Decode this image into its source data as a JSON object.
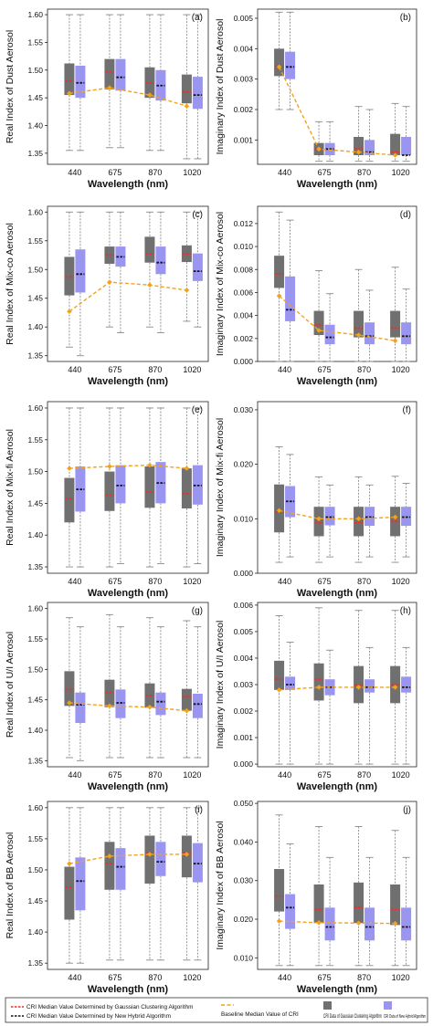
{
  "colors": {
    "gaussian_box": "#707070",
    "hybrid_box": "#9b95f2",
    "gaussian_median": "#e8312a",
    "hybrid_median": "#111111",
    "baseline": "#f2a21b",
    "whisker": "#8a8a8a"
  },
  "legend": {
    "gaussian_median": "CRI Median Value Determined by Gaussian  Clustering Algorithm",
    "hybrid_median": "CRI Median Value Determined by New Hybrid Algorithm",
    "baseline": "Baseline Median Value of CRI",
    "gaussian_box": "CRI Data of Gaussian Clustering Algorithm",
    "hybrid_box": "CRI Data of New Hybrid Algorithm"
  },
  "chart_data": [
    {
      "type": "box",
      "panel": "(a)",
      "ylabel": "Real Index of Dust Aerosol",
      "xlabel": "Wavelength (nm)",
      "categories": [
        "440",
        "675",
        "870",
        "1020"
      ],
      "ylim": [
        1.33,
        1.61
      ],
      "yticks": [
        1.35,
        1.4,
        1.45,
        1.5,
        1.55,
        1.6
      ],
      "ytick_labels": [
        "1.35",
        "1.40",
        "1.45",
        "1.50",
        "1.55",
        "1.60"
      ],
      "gaussian": [
        [
          1.355,
          1.455,
          1.48,
          1.512,
          1.6
        ],
        [
          1.36,
          1.465,
          1.497,
          1.52,
          1.6
        ],
        [
          1.355,
          1.45,
          1.477,
          1.505,
          1.6
        ],
        [
          1.34,
          1.44,
          1.46,
          1.492,
          1.6
        ]
      ],
      "hybrid": [
        [
          1.355,
          1.45,
          1.477,
          1.508,
          1.6
        ],
        [
          1.36,
          1.463,
          1.487,
          1.52,
          1.6
        ],
        [
          1.355,
          1.445,
          1.472,
          1.5,
          1.6
        ],
        [
          1.34,
          1.43,
          1.455,
          1.488,
          1.6
        ]
      ],
      "baseline": [
        1.458,
        1.468,
        1.455,
        1.435
      ]
    },
    {
      "type": "box",
      "panel": "(b)",
      "ylabel": "Imaginary Index of Dust Aerosol",
      "xlabel": "Wavelength (nm)",
      "categories": [
        "440",
        "675",
        "870",
        "1020"
      ],
      "ylim": [
        0.0002,
        0.0053
      ],
      "yticks": [
        0.001,
        0.002,
        0.003,
        0.004,
        0.005
      ],
      "ytick_labels": [
        "0.001",
        "0.002",
        "0.003",
        "0.004",
        "0.005"
      ],
      "gaussian": [
        [
          0.002,
          0.0031,
          0.0034,
          0.004,
          0.0052
        ],
        [
          0.0003,
          0.0005,
          0.0007,
          0.0009,
          0.0016
        ],
        [
          0.0003,
          0.0005,
          0.0007,
          0.0011,
          0.0021
        ],
        [
          0.0003,
          0.0005,
          0.0006,
          0.0012,
          0.0022
        ]
      ],
      "hybrid": [
        [
          0.002,
          0.003,
          0.0034,
          0.0039,
          0.0052
        ],
        [
          0.0003,
          0.0005,
          0.0007,
          0.0009,
          0.0016
        ],
        [
          0.0003,
          0.0005,
          0.0006,
          0.001,
          0.002
        ],
        [
          0.0003,
          0.0005,
          0.0005,
          0.0011,
          0.0021
        ]
      ],
      "baseline": [
        0.0034,
        0.0007,
        0.0006,
        0.0005
      ]
    },
    {
      "type": "box",
      "panel": "(c)",
      "ylabel": "Real Index of Mix-co Aerosol",
      "xlabel": "Wavelength (nm)",
      "categories": [
        "440",
        "675",
        "870",
        "1020"
      ],
      "ylim": [
        1.34,
        1.61
      ],
      "yticks": [
        1.35,
        1.4,
        1.45,
        1.5,
        1.55,
        1.6
      ],
      "ytick_labels": [
        "1.35",
        "1.40",
        "1.45",
        "1.50",
        "1.55",
        "1.60"
      ],
      "gaussian": [
        [
          1.365,
          1.455,
          1.487,
          1.522,
          1.6
        ],
        [
          1.4,
          1.51,
          1.525,
          1.54,
          1.6
        ],
        [
          1.4,
          1.512,
          1.527,
          1.557,
          1.6
        ],
        [
          1.41,
          1.513,
          1.527,
          1.542,
          1.6
        ]
      ],
      "hybrid": [
        [
          1.35,
          1.46,
          1.492,
          1.535,
          1.6
        ],
        [
          1.39,
          1.505,
          1.522,
          1.54,
          1.6
        ],
        [
          1.39,
          1.492,
          1.512,
          1.54,
          1.6
        ],
        [
          1.4,
          1.48,
          1.497,
          1.528,
          1.6
        ]
      ],
      "baseline": [
        1.427,
        1.478,
        1.473,
        1.464
      ]
    },
    {
      "type": "box",
      "panel": "(d)",
      "ylabel": "Imaginary Index of Mix-co Aerosol",
      "xlabel": "Wavelength (nm)",
      "categories": [
        "440",
        "675",
        "870",
        "1020"
      ],
      "ylim": [
        0.0,
        0.0135
      ],
      "yticks": [
        0.0,
        0.002,
        0.004,
        0.006,
        0.008,
        0.01,
        0.012
      ],
      "ytick_labels": [
        "0.000",
        "0.002",
        "0.004",
        "0.006",
        "0.008",
        "0.010",
        "0.012"
      ],
      "gaussian": [
        [
          0.0,
          0.0064,
          0.0076,
          0.0092,
          0.013
        ],
        [
          0.0,
          0.0023,
          0.0032,
          0.0044,
          0.0079
        ],
        [
          0.0,
          0.0021,
          0.0029,
          0.0044,
          0.008
        ],
        [
          0.0,
          0.0021,
          0.0029,
          0.0044,
          0.0082
        ]
      ],
      "hybrid": [
        [
          0.0,
          0.0035,
          0.0045,
          0.0074,
          0.0123
        ],
        [
          0.0,
          0.0015,
          0.0021,
          0.0032,
          0.0059
        ],
        [
          0.0,
          0.0015,
          0.0022,
          0.0034,
          0.0062
        ],
        [
          0.0,
          0.0015,
          0.0022,
          0.0034,
          0.0063
        ]
      ],
      "baseline": [
        0.0057,
        0.0027,
        0.0023,
        0.0018
      ]
    },
    {
      "type": "box",
      "panel": "(e)",
      "ylabel": "Real Index of Mix-fi Aerosol",
      "xlabel": "Wavelength (nm)",
      "categories": [
        "440",
        "675",
        "870",
        "1020"
      ],
      "ylim": [
        1.34,
        1.61
      ],
      "yticks": [
        1.35,
        1.4,
        1.45,
        1.5,
        1.55,
        1.6
      ],
      "ytick_labels": [
        "1.35",
        "1.40",
        "1.45",
        "1.50",
        "1.55",
        "1.60"
      ],
      "gaussian": [
        [
          1.35,
          1.42,
          1.457,
          1.49,
          1.6
        ],
        [
          1.35,
          1.438,
          1.463,
          1.5,
          1.6
        ],
        [
          1.35,
          1.443,
          1.468,
          1.508,
          1.6
        ],
        [
          1.35,
          1.442,
          1.465,
          1.505,
          1.6
        ]
      ],
      "hybrid": [
        [
          1.35,
          1.437,
          1.472,
          1.508,
          1.6
        ],
        [
          1.355,
          1.45,
          1.478,
          1.51,
          1.6
        ],
        [
          1.355,
          1.45,
          1.482,
          1.515,
          1.6
        ],
        [
          1.355,
          1.448,
          1.478,
          1.51,
          1.6
        ]
      ],
      "baseline": [
        1.505,
        1.508,
        1.51,
        1.505
      ]
    },
    {
      "type": "box",
      "panel": "(f)",
      "ylabel": "Imaginary Index of Mix-fi Aerosol",
      "xlabel": "Wavelength (nm)",
      "categories": [
        "440",
        "675",
        "870",
        "1020"
      ],
      "ylim": [
        0.0,
        0.0315
      ],
      "yticks": [
        0.0,
        0.01,
        0.02,
        0.03
      ],
      "ytick_labels": [
        "0.000",
        "0.010",
        "0.020",
        "0.030"
      ],
      "gaussian": [
        [
          0.002,
          0.0075,
          0.0112,
          0.0163,
          0.0232
        ],
        [
          0.002,
          0.0068,
          0.0093,
          0.0122,
          0.0177
        ],
        [
          0.002,
          0.0068,
          0.0093,
          0.0122,
          0.0177
        ],
        [
          0.002,
          0.0068,
          0.0095,
          0.0122,
          0.0178
        ]
      ],
      "hybrid": [
        [
          0.003,
          0.0103,
          0.0132,
          0.016,
          0.0218
        ],
        [
          0.003,
          0.0088,
          0.0103,
          0.0122,
          0.0162
        ],
        [
          0.003,
          0.0087,
          0.0103,
          0.0122,
          0.0162
        ],
        [
          0.003,
          0.0087,
          0.0103,
          0.0122,
          0.0165
        ]
      ],
      "baseline": [
        0.0115,
        0.01,
        0.01,
        0.0103
      ]
    },
    {
      "type": "box",
      "panel": "(g)",
      "ylabel": "Real Index of U/I Aerosol",
      "xlabel": "Wavelength (nm)",
      "categories": [
        "440",
        "675",
        "870",
        "1020"
      ],
      "ylim": [
        1.34,
        1.61
      ],
      "yticks": [
        1.35,
        1.4,
        1.45,
        1.5,
        1.55,
        1.6
      ],
      "ytick_labels": [
        "1.35",
        "1.40",
        "1.45",
        "1.50",
        "1.55",
        "1.60"
      ],
      "gaussian": [
        [
          1.355,
          1.44,
          1.467,
          1.497,
          1.585
        ],
        [
          1.355,
          1.438,
          1.462,
          1.483,
          1.59
        ],
        [
          1.355,
          1.437,
          1.457,
          1.477,
          1.585
        ],
        [
          1.355,
          1.432,
          1.455,
          1.468,
          1.58
        ]
      ],
      "hybrid": [
        [
          1.35,
          1.412,
          1.442,
          1.462,
          1.57
        ],
        [
          1.355,
          1.42,
          1.445,
          1.467,
          1.57
        ],
        [
          1.355,
          1.425,
          1.447,
          1.462,
          1.57
        ],
        [
          1.355,
          1.42,
          1.443,
          1.46,
          1.57
        ]
      ],
      "baseline": [
        1.445,
        1.44,
        1.438,
        1.432
      ]
    },
    {
      "type": "box",
      "panel": "(h)",
      "ylabel": "Imaginary Index of U/I Aerosol",
      "xlabel": "Wavelength (nm)",
      "categories": [
        "440",
        "675",
        "870",
        "1020"
      ],
      "ylim": [
        -0.0001,
        0.0061
      ],
      "yticks": [
        0.0,
        0.001,
        0.002,
        0.003,
        0.004,
        0.005,
        0.006
      ],
      "ytick_labels": [
        "0.000",
        "0.001",
        "0.002",
        "0.003",
        "0.004",
        "0.005",
        "0.006"
      ],
      "gaussian": [
        [
          0.0,
          0.0028,
          0.0032,
          0.0039,
          0.0056
        ],
        [
          0.0,
          0.0024,
          0.0032,
          0.0038,
          0.0059
        ],
        [
          0.0,
          0.0023,
          0.003,
          0.0037,
          0.0058
        ],
        [
          0.0,
          0.0023,
          0.003,
          0.0037,
          0.0058
        ]
      ],
      "hybrid": [
        [
          0.0,
          0.0028,
          0.003,
          0.0033,
          0.0046
        ],
        [
          0.0,
          0.0026,
          0.0029,
          0.0032,
          0.0043
        ],
        [
          0.0,
          0.0027,
          0.0029,
          0.0032,
          0.0044
        ],
        [
          0.0,
          0.0027,
          0.0029,
          0.0033,
          0.0044
        ]
      ],
      "baseline": [
        0.0028,
        0.0029,
        0.0029,
        0.0029
      ]
    },
    {
      "type": "box",
      "panel": "(i)",
      "ylabel": "Real Index of BB Aerosol",
      "xlabel": "Wavelength (nm)",
      "categories": [
        "440",
        "675",
        "870",
        "1020"
      ],
      "ylim": [
        1.34,
        1.61
      ],
      "yticks": [
        1.35,
        1.4,
        1.45,
        1.5,
        1.55,
        1.6
      ],
      "ytick_labels": [
        "1.35",
        "1.40",
        "1.45",
        "1.50",
        "1.55",
        "1.60"
      ],
      "gaussian": [
        [
          1.35,
          1.42,
          1.472,
          1.505,
          1.6
        ],
        [
          1.355,
          1.468,
          1.51,
          1.545,
          1.6
        ],
        [
          1.355,
          1.478,
          1.527,
          1.555,
          1.6
        ],
        [
          1.355,
          1.488,
          1.527,
          1.555,
          1.6
        ]
      ],
      "hybrid": [
        [
          1.35,
          1.435,
          1.482,
          1.52,
          1.6
        ],
        [
          1.355,
          1.468,
          1.505,
          1.535,
          1.6
        ],
        [
          1.355,
          1.49,
          1.513,
          1.545,
          1.6
        ],
        [
          1.355,
          1.48,
          1.51,
          1.543,
          1.6
        ]
      ],
      "baseline": [
        1.51,
        1.522,
        1.525,
        1.525
      ]
    },
    {
      "type": "box",
      "panel": "(j)",
      "ylabel": "Imaginary Index of BB Aerosol",
      "xlabel": "Wavelength (nm)",
      "categories": [
        "440",
        "675",
        "870",
        "1020"
      ],
      "ylim": [
        0.007,
        0.0505
      ],
      "yticks": [
        0.01,
        0.02,
        0.03,
        0.04,
        0.05
      ],
      "ytick_labels": [
        "0.010",
        "0.020",
        "0.030",
        "0.040",
        "0.050"
      ],
      "gaussian": [
        [
          0.008,
          0.022,
          0.026,
          0.033,
          0.047
        ],
        [
          0.008,
          0.019,
          0.0225,
          0.029,
          0.044
        ],
        [
          0.008,
          0.019,
          0.023,
          0.0295,
          0.044
        ],
        [
          0.008,
          0.0185,
          0.0225,
          0.029,
          0.043
        ]
      ],
      "hybrid": [
        [
          0.008,
          0.0175,
          0.023,
          0.0265,
          0.0395
        ],
        [
          0.008,
          0.0145,
          0.018,
          0.023,
          0.036
        ],
        [
          0.008,
          0.0145,
          0.018,
          0.023,
          0.036
        ],
        [
          0.008,
          0.0145,
          0.018,
          0.023,
          0.036
        ]
      ],
      "baseline": [
        0.0195,
        0.0191,
        0.019,
        0.0189
      ]
    }
  ]
}
